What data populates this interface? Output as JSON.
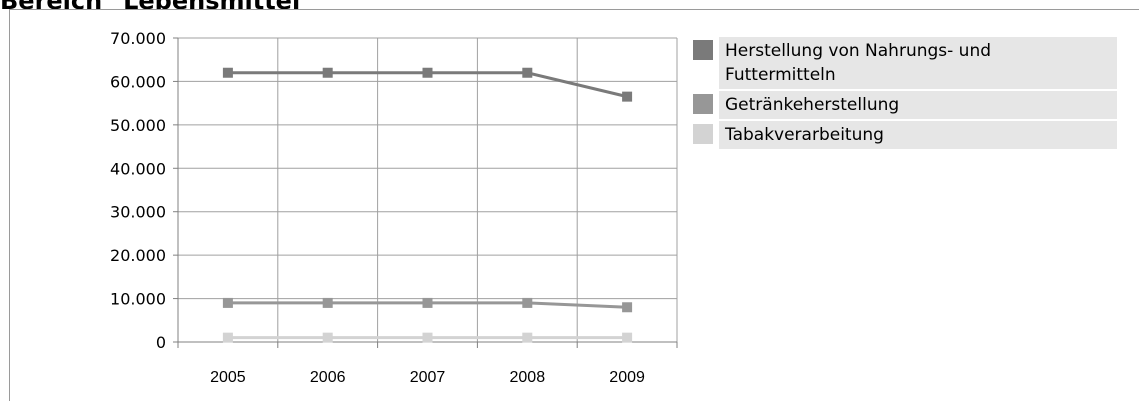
{
  "page": {
    "title": "Bereich \"Lebensmittel\""
  },
  "chart_data": {
    "type": "line",
    "categories": [
      "2005",
      "2006",
      "2007",
      "2008",
      "2009"
    ],
    "ylim": [
      0,
      70000
    ],
    "yticks": [
      0,
      10000,
      20000,
      30000,
      40000,
      50000,
      60000,
      70000
    ],
    "ytick_labels": [
      "0",
      "10.000",
      "20.000",
      "30.000",
      "40.000",
      "50.000",
      "60.000",
      "70.000"
    ],
    "grid": true,
    "legend_position": "right",
    "series": [
      {
        "name": "Herstellung von Nahrungs- und Futtermitteln",
        "legend_lines": [
          "Herstellung von Nahrungs- und",
          "Futtermitteln"
        ],
        "color": "#7a7a7a",
        "values": [
          62000,
          62000,
          62000,
          62000,
          56500
        ]
      },
      {
        "name": "Getränkeherstellung",
        "legend_lines": [
          "Getränkeherstellung"
        ],
        "color": "#979797",
        "values": [
          9000,
          9000,
          9000,
          9000,
          8000
        ]
      },
      {
        "name": "Tabakverarbeitung",
        "legend_lines": [
          "Tabakverarbeitung"
        ],
        "color": "#d3d3d3",
        "values": [
          1000,
          1000,
          1000,
          1000,
          1000
        ]
      }
    ]
  }
}
